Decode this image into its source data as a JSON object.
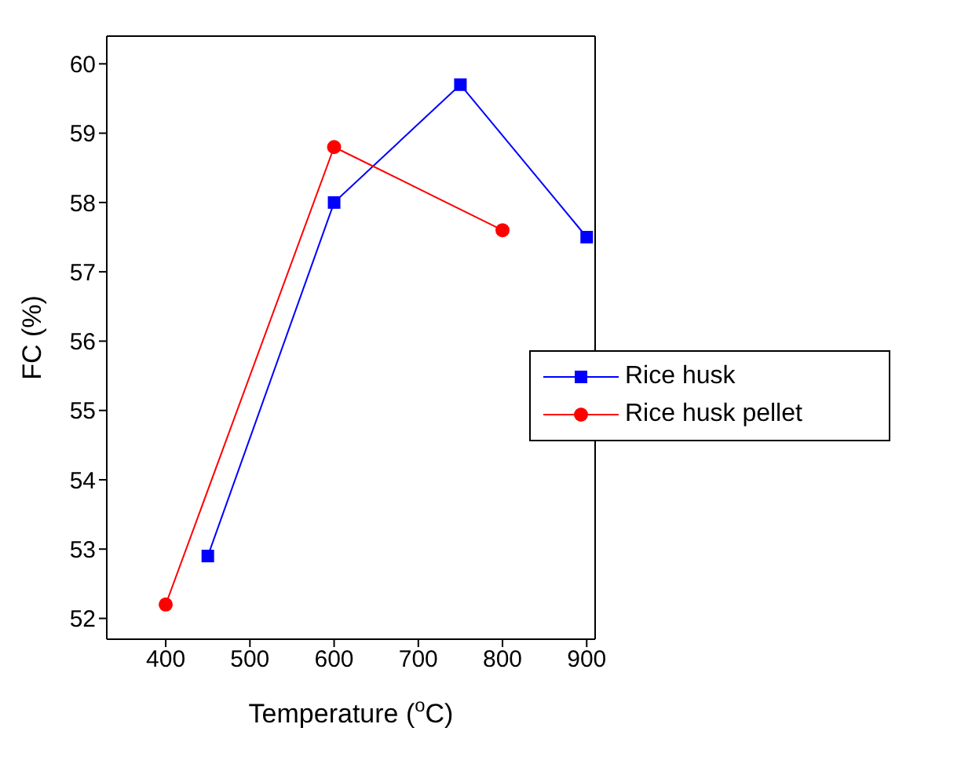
{
  "chart_data": {
    "type": "line",
    "xlabel": "Temperature ($^{o}$C)",
    "ylabel": "FC (%)",
    "xlim": [
      330,
      910
    ],
    "xticks": [
      400,
      500,
      600,
      700,
      800,
      900
    ],
    "ylim": [
      51.7,
      60.4
    ],
    "yticks": [
      52,
      53,
      54,
      55,
      56,
      57,
      58,
      59,
      60
    ],
    "grid": false,
    "legend": "right",
    "line_style": "solid",
    "series": [
      {
        "name": "Rice husk",
        "color": "#0000ff",
        "marker": "square",
        "x": [
          450,
          600,
          750,
          900
        ],
        "values": [
          52.9,
          58.0,
          59.7,
          57.5
        ]
      },
      {
        "name": "Rice husk pellet",
        "color": "#ff0000",
        "marker": "circle",
        "x": [
          400,
          600,
          800
        ],
        "values": [
          52.2,
          58.8,
          57.6
        ]
      }
    ]
  }
}
